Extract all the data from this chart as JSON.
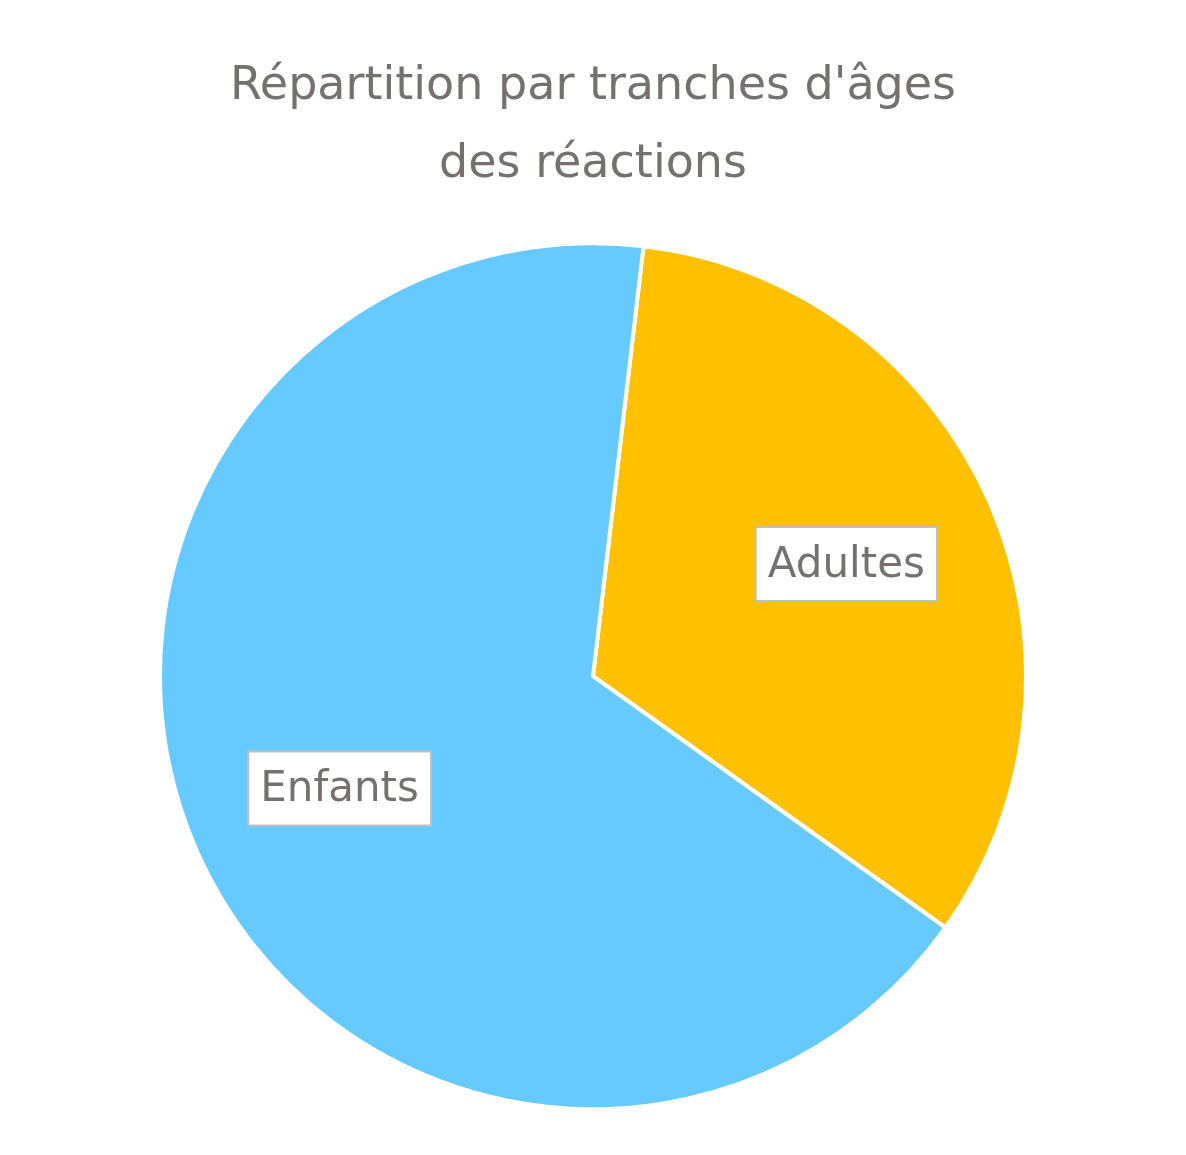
{
  "chart_data": {
    "type": "pie",
    "title": "Répartition par tranches d'âges des réactions",
    "categories": [
      "Adultes",
      "Enfants"
    ],
    "values": [
      33,
      67
    ],
    "colors": [
      "#ffc000",
      "#66c9ff"
    ],
    "legend": false
  }
}
